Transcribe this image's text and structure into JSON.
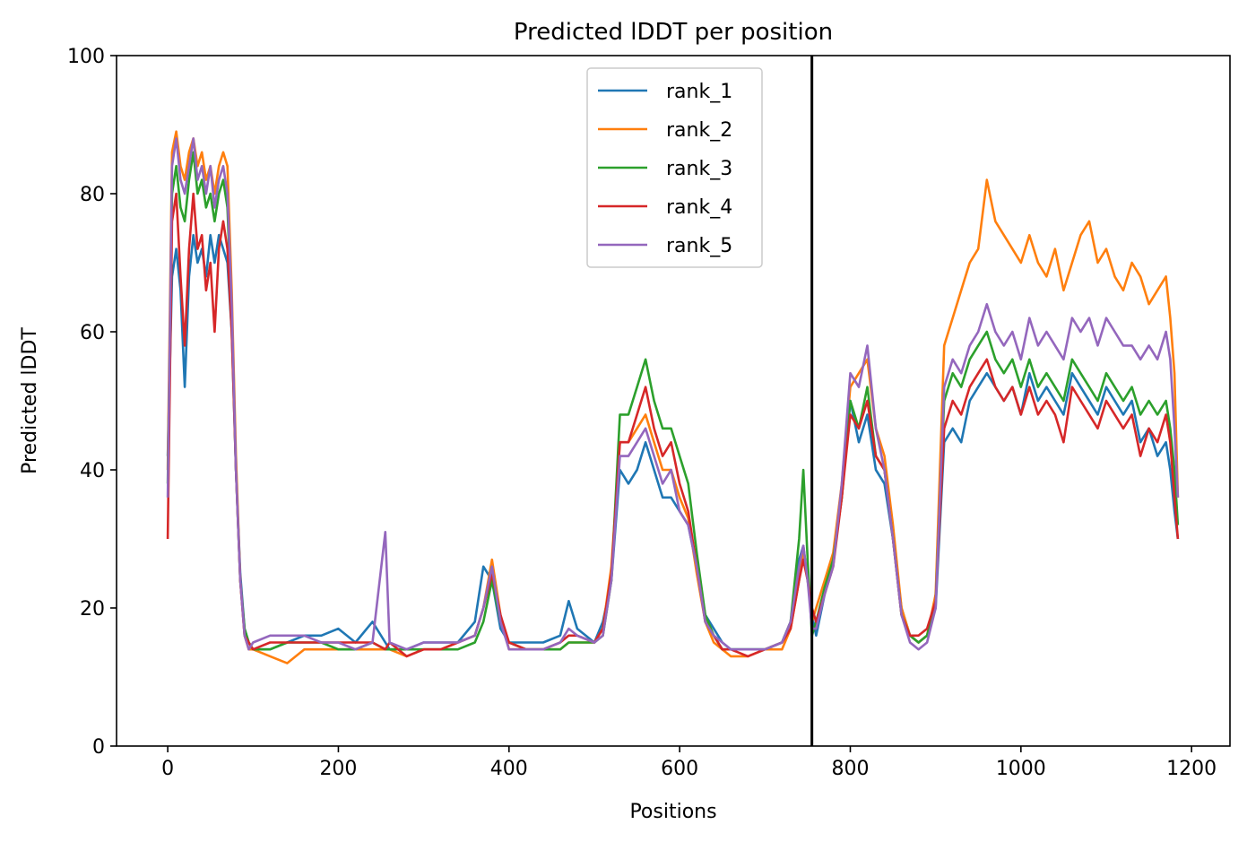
{
  "chart_data": {
    "type": "line",
    "title": "Predicted lDDT per position",
    "xlabel": "Positions",
    "ylabel": "Predicted lDDT",
    "xlim": [
      -60,
      1245
    ],
    "ylim": [
      0,
      100
    ],
    "xticks": [
      0,
      200,
      400,
      600,
      800,
      1000,
      1200
    ],
    "yticks": [
      0,
      20,
      40,
      60,
      80,
      100
    ],
    "vline_x": 755,
    "vline_color": "#000000",
    "legend_position": "upper center",
    "grid": false,
    "x": [
      0,
      5,
      10,
      15,
      20,
      25,
      30,
      35,
      40,
      45,
      50,
      55,
      60,
      65,
      70,
      75,
      80,
      85,
      90,
      95,
      100,
      120,
      140,
      160,
      180,
      200,
      220,
      240,
      255,
      260,
      280,
      300,
      320,
      340,
      360,
      370,
      380,
      390,
      400,
      420,
      440,
      460,
      470,
      480,
      500,
      510,
      520,
      530,
      540,
      550,
      560,
      570,
      580,
      590,
      600,
      610,
      620,
      630,
      640,
      650,
      660,
      680,
      700,
      720,
      730,
      740,
      745,
      750,
      755,
      760,
      770,
      780,
      790,
      800,
      810,
      820,
      830,
      840,
      850,
      860,
      870,
      880,
      890,
      900,
      910,
      920,
      930,
      940,
      950,
      960,
      970,
      980,
      990,
      1000,
      1010,
      1020,
      1030,
      1040,
      1050,
      1060,
      1070,
      1080,
      1090,
      1100,
      1110,
      1120,
      1130,
      1140,
      1150,
      1160,
      1170,
      1175,
      1180,
      1184
    ],
    "series": [
      {
        "name": "rank_1",
        "color": "#1f77b4",
        "values": [
          42,
          68,
          72,
          66,
          52,
          68,
          74,
          70,
          72,
          68,
          74,
          70,
          74,
          72,
          70,
          60,
          40,
          25,
          17,
          15,
          14,
          14,
          15,
          16,
          16,
          17,
          15,
          18,
          15,
          14,
          14,
          15,
          15,
          15,
          18,
          26,
          24,
          17,
          15,
          15,
          15,
          16,
          21,
          17,
          15,
          18,
          24,
          40,
          38,
          40,
          44,
          40,
          36,
          36,
          34,
          32,
          26,
          19,
          17,
          15,
          14,
          14,
          14,
          15,
          18,
          27,
          29,
          24,
          19,
          16,
          22,
          27,
          36,
          50,
          44,
          48,
          40,
          38,
          30,
          20,
          16,
          15,
          16,
          20,
          44,
          46,
          44,
          50,
          52,
          54,
          52,
          50,
          52,
          48,
          54,
          50,
          52,
          50,
          48,
          54,
          52,
          50,
          48,
          52,
          50,
          48,
          50,
          44,
          46,
          42,
          44,
          40,
          34,
          30
        ]
      },
      {
        "name": "rank_2",
        "color": "#ff7f0e",
        "values": [
          40,
          86,
          89,
          84,
          82,
          86,
          88,
          84,
          86,
          82,
          84,
          80,
          84,
          86,
          84,
          66,
          42,
          24,
          16,
          14,
          14,
          13,
          12,
          14,
          14,
          14,
          14,
          14,
          14,
          14,
          13,
          14,
          14,
          15,
          16,
          20,
          27,
          19,
          14,
          14,
          14,
          14,
          15,
          15,
          15,
          17,
          26,
          44,
          44,
          46,
          48,
          44,
          40,
          40,
          36,
          33,
          25,
          18,
          15,
          14,
          13,
          13,
          14,
          14,
          17,
          24,
          28,
          25,
          18,
          20,
          24,
          28,
          38,
          52,
          54,
          56,
          46,
          42,
          32,
          20,
          16,
          15,
          16,
          22,
          58,
          62,
          66,
          70,
          72,
          82,
          76,
          74,
          72,
          70,
          74,
          70,
          68,
          72,
          66,
          70,
          74,
          76,
          70,
          72,
          68,
          66,
          70,
          68,
          64,
          66,
          68,
          62,
          54,
          36
        ]
      },
      {
        "name": "rank_3",
        "color": "#2ca02c",
        "values": [
          38,
          80,
          84,
          78,
          76,
          82,
          86,
          80,
          82,
          78,
          80,
          76,
          80,
          82,
          78,
          62,
          40,
          24,
          17,
          15,
          14,
          14,
          15,
          15,
          15,
          14,
          14,
          15,
          14,
          14,
          14,
          14,
          14,
          14,
          15,
          18,
          24,
          18,
          15,
          14,
          14,
          14,
          15,
          15,
          15,
          16,
          24,
          48,
          48,
          52,
          56,
          50,
          46,
          46,
          42,
          38,
          28,
          19,
          16,
          14,
          14,
          14,
          14,
          15,
          18,
          30,
          40,
          27,
          16,
          18,
          23,
          27,
          36,
          50,
          46,
          52,
          42,
          40,
          30,
          19,
          16,
          15,
          16,
          21,
          50,
          54,
          52,
          56,
          58,
          60,
          56,
          54,
          56,
          52,
          56,
          52,
          54,
          52,
          50,
          56,
          54,
          52,
          50,
          54,
          52,
          50,
          52,
          48,
          50,
          48,
          50,
          46,
          40,
          32
        ]
      },
      {
        "name": "rank_4",
        "color": "#d62728",
        "values": [
          30,
          76,
          80,
          68,
          58,
          72,
          80,
          72,
          74,
          66,
          70,
          60,
          72,
          76,
          72,
          60,
          40,
          24,
          16,
          15,
          14,
          15,
          15,
          15,
          15,
          15,
          15,
          15,
          14,
          15,
          13,
          14,
          14,
          15,
          16,
          20,
          25,
          19,
          15,
          14,
          14,
          15,
          16,
          16,
          15,
          17,
          25,
          44,
          44,
          48,
          52,
          46,
          42,
          44,
          38,
          34,
          26,
          18,
          16,
          14,
          14,
          13,
          14,
          15,
          17,
          24,
          27,
          24,
          20,
          18,
          22,
          26,
          36,
          48,
          46,
          50,
          42,
          40,
          30,
          19,
          16,
          16,
          17,
          21,
          46,
          50,
          48,
          52,
          54,
          56,
          52,
          50,
          52,
          48,
          52,
          48,
          50,
          48,
          44,
          52,
          50,
          48,
          46,
          50,
          48,
          46,
          48,
          42,
          46,
          44,
          48,
          44,
          36,
          30
        ]
      },
      {
        "name": "rank_5",
        "color": "#9467bd",
        "values": [
          36,
          84,
          88,
          82,
          80,
          84,
          88,
          82,
          84,
          80,
          84,
          78,
          82,
          84,
          80,
          64,
          40,
          24,
          16,
          14,
          15,
          16,
          16,
          16,
          15,
          15,
          14,
          15,
          31,
          15,
          14,
          15,
          15,
          15,
          16,
          20,
          26,
          18,
          14,
          14,
          14,
          15,
          17,
          16,
          15,
          16,
          24,
          42,
          42,
          44,
          46,
          42,
          38,
          40,
          34,
          32,
          26,
          18,
          16,
          15,
          14,
          14,
          14,
          15,
          18,
          26,
          29,
          24,
          17,
          17,
          22,
          26,
          38,
          54,
          52,
          58,
          46,
          40,
          30,
          19,
          15,
          14,
          15,
          20,
          52,
          56,
          54,
          58,
          60,
          64,
          60,
          58,
          60,
          56,
          62,
          58,
          60,
          58,
          56,
          62,
          60,
          62,
          58,
          62,
          60,
          58,
          58,
          56,
          58,
          56,
          60,
          56,
          46,
          36
        ]
      }
    ]
  }
}
